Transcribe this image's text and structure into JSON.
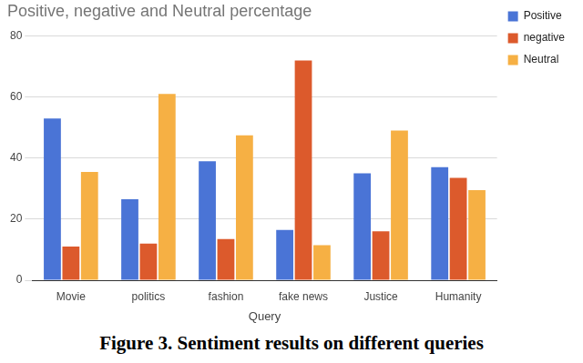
{
  "chart_data": {
    "type": "bar",
    "title": "Positive, negative and Neutral percentage",
    "caption": "Figure 3. Sentiment results on different queries",
    "x_label": "Query",
    "categories": [
      "Movie",
      "politics",
      "fashion",
      "fake news",
      "Justice",
      "Humanity"
    ],
    "series": [
      {
        "name": "Positive",
        "color": "#4a74d6",
        "values": [
          53,
          26.5,
          39,
          16.5,
          35,
          37
        ]
      },
      {
        "name": "negative",
        "color": "#dc5a2c",
        "values": [
          11,
          12,
          13.5,
          72,
          16,
          33.5
        ]
      },
      {
        "name": "Neutral",
        "color": "#f6b044",
        "values": [
          35.5,
          61,
          47.5,
          11.5,
          49,
          29.5
        ]
      }
    ],
    "ylim": [
      0,
      80
    ],
    "yticks": [
      0,
      20,
      40,
      60,
      80
    ],
    "grid": true,
    "legend": "right"
  }
}
